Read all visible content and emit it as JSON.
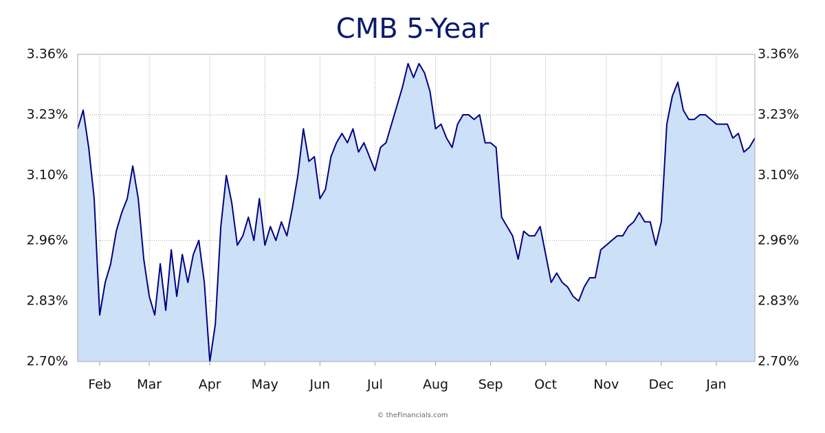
{
  "chart_data": {
    "type": "area",
    "title": "CMB 5-Year",
    "source": "© theFinancials.com",
    "categories": [
      null,
      null,
      null,
      null,
      "Feb",
      null,
      null,
      null,
      null,
      null,
      null,
      null,
      null,
      "Mar",
      null,
      null,
      null,
      null,
      null,
      null,
      null,
      null,
      null,
      null,
      "Apr",
      null,
      null,
      null,
      null,
      null,
      null,
      null,
      null,
      null,
      "May",
      null,
      null,
      null,
      null,
      null,
      null,
      null,
      null,
      null,
      "Jun",
      null,
      null,
      null,
      null,
      null,
      null,
      null,
      null,
      null,
      "Jul",
      null,
      null,
      null,
      null,
      null,
      null,
      null,
      null,
      null,
      null,
      "Aug",
      null,
      null,
      null,
      null,
      null,
      null,
      null,
      null,
      null,
      "Sep",
      null,
      null,
      null,
      null,
      null,
      null,
      null,
      null,
      null,
      "Oct",
      null,
      null,
      null,
      null,
      null,
      null,
      null,
      null,
      null,
      null,
      "Nov",
      null,
      null,
      null,
      null,
      null,
      null,
      null,
      null,
      null,
      "Dec",
      null,
      null,
      null,
      null,
      null,
      null,
      null,
      null,
      null,
      "Jan",
      null,
      null,
      null,
      null,
      null,
      null,
      null
    ],
    "values": [
      3.2,
      3.24,
      3.16,
      3.05,
      2.8,
      2.87,
      2.91,
      2.98,
      3.02,
      3.05,
      3.12,
      3.05,
      2.92,
      2.84,
      2.8,
      2.91,
      2.81,
      2.94,
      2.84,
      2.93,
      2.87,
      2.93,
      2.96,
      2.87,
      2.7,
      2.78,
      2.99,
      3.1,
      3.04,
      2.95,
      2.97,
      3.01,
      2.96,
      3.05,
      2.95,
      2.99,
      2.96,
      3.0,
      2.97,
      3.03,
      3.1,
      3.2,
      3.13,
      3.14,
      3.05,
      3.07,
      3.14,
      3.17,
      3.19,
      3.17,
      3.2,
      3.15,
      3.17,
      3.14,
      3.11,
      3.16,
      3.17,
      3.21,
      3.25,
      3.29,
      3.34,
      3.31,
      3.34,
      3.32,
      3.28,
      3.2,
      3.21,
      3.18,
      3.16,
      3.21,
      3.23,
      3.23,
      3.22,
      3.23,
      3.17,
      3.17,
      3.16,
      3.01,
      2.99,
      2.97,
      2.92,
      2.98,
      2.97,
      2.97,
      2.99,
      2.93,
      2.87,
      2.89,
      2.87,
      2.86,
      2.84,
      2.83,
      2.86,
      2.88,
      2.88,
      2.94,
      2.95,
      2.96,
      2.97,
      2.97,
      2.99,
      3.0,
      3.02,
      3.0,
      3.0,
      2.95,
      3.0,
      3.21,
      3.27,
      3.3,
      3.24,
      3.22,
      3.22,
      3.23,
      3.23,
      3.22,
      3.21,
      3.21,
      3.21,
      3.18,
      3.19,
      3.15,
      3.16,
      3.18
    ],
    "color": "#000080",
    "fill": "#cce0f7",
    "ylim": [
      2.7,
      3.36
    ],
    "yticks": [
      {
        "value": 2.7,
        "label": "2.70%"
      },
      {
        "value": 2.83,
        "label": "2.83%"
      },
      {
        "value": 2.96,
        "label": "2.96%"
      },
      {
        "value": 3.1,
        "label": "3.10%"
      },
      {
        "value": 3.23,
        "label": "3.23%"
      },
      {
        "value": 3.36,
        "label": "3.36%"
      }
    ],
    "grid": true
  }
}
